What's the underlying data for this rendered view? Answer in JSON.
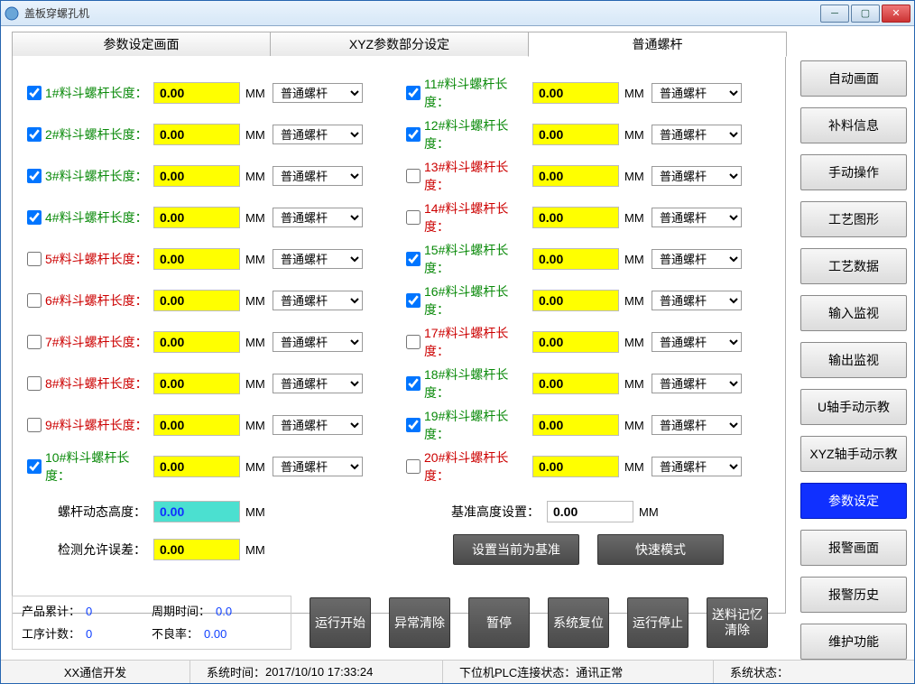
{
  "window": {
    "title": "盖板穿螺孔机"
  },
  "tabs": [
    {
      "label": "参数设定画面",
      "active": false
    },
    {
      "label": "XYZ参数部分设定",
      "active": false
    },
    {
      "label": "普通螺杆",
      "active": true
    }
  ],
  "sidebuttons": [
    {
      "label": "自动画面"
    },
    {
      "label": "补料信息"
    },
    {
      "label": "手动操作"
    },
    {
      "label": "工艺图形"
    },
    {
      "label": "工艺数据"
    },
    {
      "label": "输入监视"
    },
    {
      "label": "输出监视"
    },
    {
      "label": "U轴手动示教"
    },
    {
      "label": "XYZ轴手动示教"
    },
    {
      "label": "参数设定",
      "active": true
    },
    {
      "label": "报警画面"
    },
    {
      "label": "报警历史"
    },
    {
      "label": "维护功能"
    }
  ],
  "screw_option": "普通螺杆",
  "unit": "MM",
  "left_rows": [
    {
      "idx": 1,
      "checked": true,
      "color": "green",
      "label": "1#料斗螺杆长度：",
      "value": "0.00"
    },
    {
      "idx": 2,
      "checked": true,
      "color": "green",
      "label": "2#料斗螺杆长度：",
      "value": "0.00"
    },
    {
      "idx": 3,
      "checked": true,
      "color": "green",
      "label": "3#料斗螺杆长度：",
      "value": "0.00"
    },
    {
      "idx": 4,
      "checked": true,
      "color": "green",
      "label": "4#料斗螺杆长度：",
      "value": "0.00"
    },
    {
      "idx": 5,
      "checked": false,
      "color": "red",
      "label": "5#料斗螺杆长度：",
      "value": "0.00"
    },
    {
      "idx": 6,
      "checked": false,
      "color": "red",
      "label": "6#料斗螺杆长度：",
      "value": "0.00"
    },
    {
      "idx": 7,
      "checked": false,
      "color": "red",
      "label": "7#料斗螺杆长度：",
      "value": "0.00"
    },
    {
      "idx": 8,
      "checked": false,
      "color": "red",
      "label": "8#料斗螺杆长度：",
      "value": "0.00"
    },
    {
      "idx": 9,
      "checked": false,
      "color": "red",
      "label": "9#料斗螺杆长度：",
      "value": "0.00"
    },
    {
      "idx": 10,
      "checked": true,
      "color": "green",
      "label": "10#料斗螺杆长度：",
      "value": "0.00"
    }
  ],
  "right_rows": [
    {
      "idx": 11,
      "checked": true,
      "color": "green",
      "label": "11#料斗螺杆长度：",
      "value": "0.00"
    },
    {
      "idx": 12,
      "checked": true,
      "color": "green",
      "label": "12#料斗螺杆长度：",
      "value": "0.00"
    },
    {
      "idx": 13,
      "checked": false,
      "color": "red",
      "label": "13#料斗螺杆长度：",
      "value": "0.00"
    },
    {
      "idx": 14,
      "checked": false,
      "color": "red",
      "label": "14#料斗螺杆长度：",
      "value": "0.00"
    },
    {
      "idx": 15,
      "checked": true,
      "color": "green",
      "label": "15#料斗螺杆长度：",
      "value": "0.00"
    },
    {
      "idx": 16,
      "checked": true,
      "color": "green",
      "label": "16#料斗螺杆长度：",
      "value": "0.00"
    },
    {
      "idx": 17,
      "checked": false,
      "color": "red",
      "label": "17#料斗螺杆长度：",
      "value": "0.00"
    },
    {
      "idx": 18,
      "checked": true,
      "color": "green",
      "label": "18#料斗螺杆长度：",
      "value": "0.00"
    },
    {
      "idx": 19,
      "checked": true,
      "color": "green",
      "label": "19#料斗螺杆长度：",
      "value": "0.00"
    },
    {
      "idx": 20,
      "checked": false,
      "color": "red",
      "label": "20#料斗螺杆长度：",
      "value": "0.00"
    }
  ],
  "extras": {
    "dyn_height_label": "螺杆动态高度：",
    "dyn_height_value": "0.00",
    "base_height_label": "基准高度设置：",
    "base_height_value": "0.00",
    "tolerance_label": "检测允许误差：",
    "tolerance_value": "0.00",
    "set_base_btn": "设置当前为基准",
    "fast_mode_btn": "快速模式"
  },
  "stats": {
    "product_count_label": "产品累计：",
    "product_count": "0",
    "cycle_time_label": "周期时间：",
    "cycle_time": "0.0",
    "proc_count_label": "工序计数：",
    "proc_count": "0",
    "defect_rate_label": "不良率：",
    "defect_rate": "0.00"
  },
  "opbtns": [
    "运行开始",
    "异常清除",
    "暂停",
    "系统复位",
    "运行停止",
    "送料记忆清除"
  ],
  "statusbar": {
    "comm_dev": "XX通信开发",
    "systime_label": "系统时间：",
    "systime": "2017/10/10 17:33:24",
    "plc_label": "下位机PLC连接状态：",
    "plc_value": "通讯正常",
    "sys_state_label": "系统状态："
  }
}
